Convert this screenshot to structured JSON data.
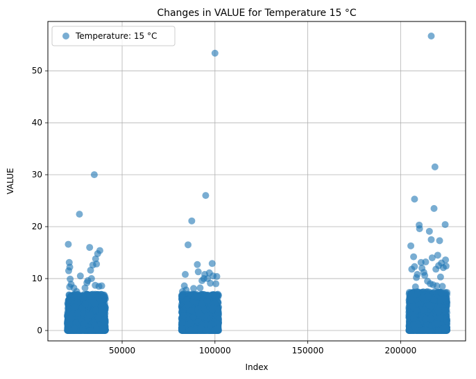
{
  "chart_data": {
    "type": "scatter",
    "title": "Changes in VALUE for Temperature 15 °C",
    "xlabel": "Index",
    "ylabel": "VALUE",
    "xlim": [
      10000,
      235000
    ],
    "ylim": [
      -2,
      59.5
    ],
    "xticks": [
      50000,
      100000,
      150000,
      200000
    ],
    "yticks": [
      0,
      10,
      20,
      30,
      40,
      50
    ],
    "grid": true,
    "legend_position": "top-left",
    "series": [
      {
        "name": "Temperature: 15 °C",
        "color": "#1f77b4",
        "alpha": 0.6,
        "clusters": [
          {
            "x_range": [
              20500,
              41000
            ],
            "dense_y_max": 7
          },
          {
            "x_range": [
              82000,
              102000
            ],
            "dense_y_max": 7
          },
          {
            "x_range": [
              204500,
              225000
            ],
            "dense_y_max": 7.5
          }
        ],
        "points": [
          [
            21000,
            16.6
          ],
          [
            21500,
            13.1
          ],
          [
            21800,
            12.2
          ],
          [
            21200,
            11.5
          ],
          [
            22000,
            9.9
          ],
          [
            22500,
            8.9
          ],
          [
            21700,
            8.4
          ],
          [
            27000,
            22.4
          ],
          [
            27500,
            10.5
          ],
          [
            25500,
            7.5
          ],
          [
            24000,
            8.2
          ],
          [
            32500,
            16.0
          ],
          [
            33000,
            11.6
          ],
          [
            33500,
            10.0
          ],
          [
            34200,
            12.6
          ],
          [
            35000,
            30.0
          ],
          [
            35700,
            13.8
          ],
          [
            36200,
            12.8
          ],
          [
            36800,
            14.8
          ],
          [
            38000,
            15.4
          ],
          [
            31500,
            9.6
          ],
          [
            31000,
            9.2
          ],
          [
            35500,
            8.7
          ],
          [
            37500,
            8.5
          ],
          [
            39000,
            8.6
          ],
          [
            30000,
            8.2
          ],
          [
            82500,
            7.5
          ],
          [
            83500,
            8.6
          ],
          [
            84000,
            10.8
          ],
          [
            85500,
            16.5
          ],
          [
            84500,
            7.8
          ],
          [
            87500,
            21.1
          ],
          [
            88500,
            8.1
          ],
          [
            90500,
            12.7
          ],
          [
            91000,
            11.3
          ],
          [
            92000,
            8.2
          ],
          [
            93000,
            9.6
          ],
          [
            94000,
            10.0
          ],
          [
            94500,
            10.8
          ],
          [
            95000,
            26.0
          ],
          [
            96000,
            10.0
          ],
          [
            97000,
            11.1
          ],
          [
            97500,
            9.1
          ],
          [
            98500,
            12.9
          ],
          [
            99000,
            10.5
          ],
          [
            100000,
            53.4
          ],
          [
            101000,
            10.4
          ],
          [
            100500,
            9.0
          ],
          [
            205500,
            16.3
          ],
          [
            206000,
            11.8
          ],
          [
            207000,
            14.2
          ],
          [
            207500,
            25.3
          ],
          [
            207500,
            12.3
          ],
          [
            208500,
            10.2
          ],
          [
            209000,
            10.8
          ],
          [
            210000,
            20.3
          ],
          [
            210200,
            19.6
          ],
          [
            211000,
            13.1
          ],
          [
            211500,
            12.0
          ],
          [
            212500,
            11.2
          ],
          [
            213000,
            10.6
          ],
          [
            213500,
            13.2
          ],
          [
            215500,
            19.1
          ],
          [
            216500,
            56.7
          ],
          [
            216500,
            17.5
          ],
          [
            217000,
            14.0
          ],
          [
            218000,
            23.5
          ],
          [
            218500,
            31.5
          ],
          [
            219000,
            11.8
          ],
          [
            220000,
            14.5
          ],
          [
            220500,
            12.5
          ],
          [
            221000,
            17.3
          ],
          [
            221500,
            10.3
          ],
          [
            222000,
            13.0
          ],
          [
            223000,
            12.1
          ],
          [
            224000,
            20.4
          ],
          [
            224200,
            13.6
          ],
          [
            224500,
            12.4
          ],
          [
            214500,
            9.5
          ],
          [
            216000,
            9.0
          ],
          [
            217500,
            8.8
          ],
          [
            219500,
            8.6
          ],
          [
            222500,
            8.5
          ],
          [
            208000,
            8.4
          ]
        ]
      }
    ]
  }
}
